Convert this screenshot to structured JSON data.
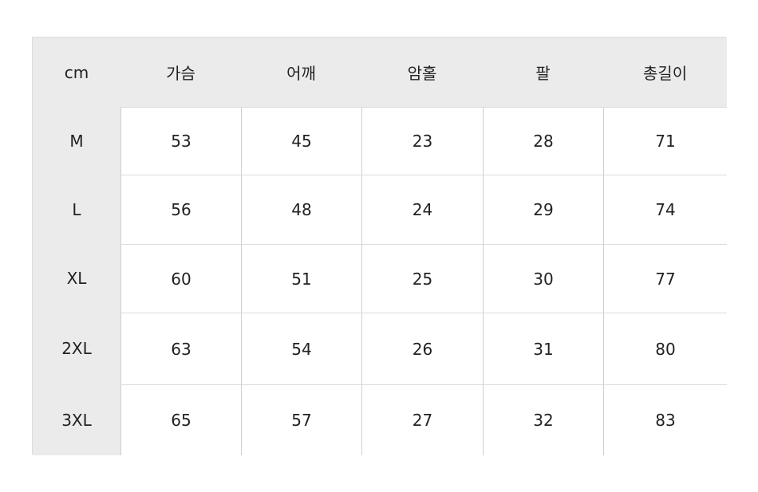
{
  "table": {
    "header": [
      "cm",
      "가슴",
      "어깨",
      "암홀",
      "팔",
      "총길이"
    ],
    "rows": [
      [
        "M",
        53,
        45,
        23,
        28,
        71
      ],
      [
        "L",
        56,
        48,
        24,
        29,
        74
      ],
      [
        "XL",
        60,
        51,
        25,
        30,
        77
      ],
      [
        "2XL",
        63,
        54,
        26,
        31,
        80
      ],
      [
        "3XL",
        65,
        57,
        27,
        32,
        83
      ]
    ]
  }
}
